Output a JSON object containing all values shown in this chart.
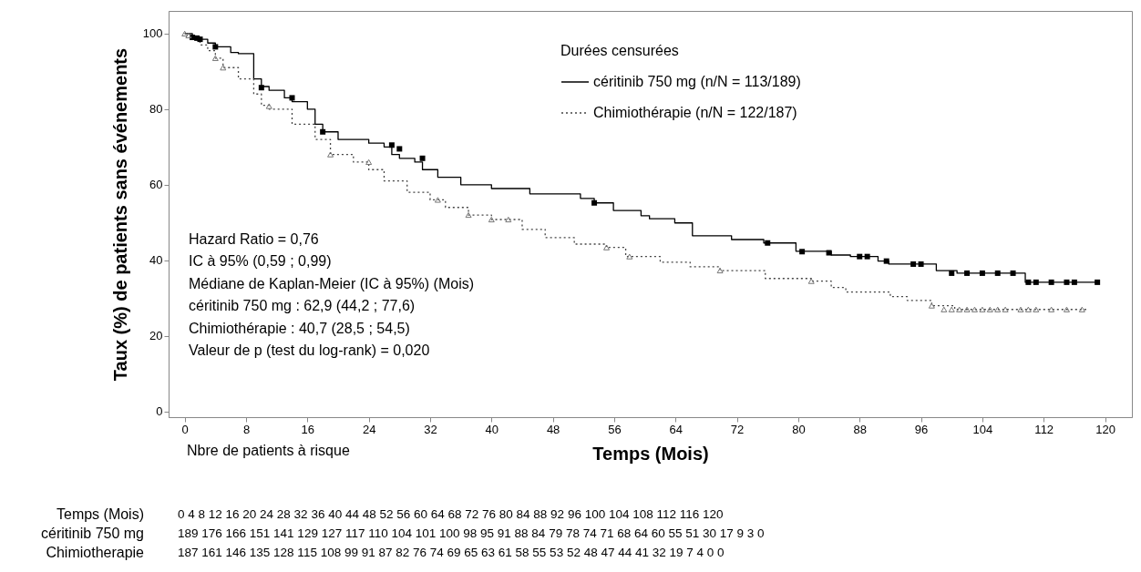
{
  "chart_data": {
    "type": "step",
    "xlabel": "Temps (Mois)",
    "ylabel": "Taux (%) de patients sans événements",
    "legend_title": "Durées censurées",
    "legend": "top right",
    "grid": false,
    "xlim": [
      -2.1,
      123.5
    ],
    "ylim": [
      -1.5,
      106
    ],
    "xticks": [
      0,
      8,
      16,
      24,
      32,
      40,
      48,
      56,
      64,
      72,
      80,
      88,
      96,
      104,
      112,
      120
    ],
    "yticks": [
      0,
      20,
      40,
      60,
      80,
      100
    ],
    "series": [
      {
        "type": "step",
        "name": "céritinib 750 mg (n/N = 113/189)",
        "color": "#000000",
        "line_style": "solid",
        "x": [
          0,
          1,
          2,
          3,
          4,
          6,
          7,
          9,
          10,
          11,
          13,
          14,
          16,
          17,
          18,
          20,
          24,
          26,
          27,
          28,
          30,
          31,
          33,
          36,
          40,
          45,
          51.6,
          53.4,
          55.9,
          59.5,
          60.6,
          63.9,
          66.2,
          71.3,
          75.5,
          79.7,
          84.3,
          86.8,
          90.4,
          91.8,
          98,
          100.7,
          109.6,
          119
        ],
        "values": [
          100,
          99,
          98.5,
          97.5,
          96.5,
          95,
          94.7,
          88,
          86,
          85,
          83,
          82,
          80,
          76,
          74,
          72,
          71,
          70,
          68,
          67,
          66,
          64,
          62,
          60,
          59,
          57.6,
          56.4,
          55.2,
          53.2,
          51.8,
          51,
          49.9,
          46.5,
          45.5,
          44.6,
          42.4,
          41.4,
          41,
          39.8,
          39,
          37.3,
          36.6,
          34.2,
          34.2
        ]
      },
      {
        "type": "step",
        "name": "Chimiothérapie (n/N = 122/187)",
        "color": "#444444",
        "line_style": "dotted",
        "x": [
          0,
          1,
          2,
          3,
          4,
          5,
          7,
          9,
          10,
          11,
          14,
          17,
          19,
          22,
          24,
          26,
          29,
          32,
          34,
          37,
          40,
          44,
          47,
          50.8,
          55,
          57.5,
          62,
          65.9,
          69.8,
          75.7,
          81.7,
          84.3,
          86.2,
          92,
          94.2,
          97.4,
          100.4,
          117.7
        ],
        "values": [
          100,
          98.5,
          97,
          95.5,
          93.5,
          91,
          88,
          84,
          81,
          80,
          76,
          72,
          68,
          66,
          64,
          61,
          58,
          56,
          54,
          52,
          50.8,
          48.2,
          46,
          44.3,
          43.4,
          41,
          39.5,
          38.3,
          37.3,
          35.2,
          34.5,
          32.8,
          31.6,
          30.4,
          29.4,
          28,
          27,
          27
        ]
      },
      {
        "type": "scatter",
        "marker": "square",
        "color": "#000000",
        "x": [
          1,
          1.6,
          2,
          4,
          10,
          14,
          18,
          27,
          28,
          31,
          53.4,
          76,
          80.5,
          84,
          88,
          89,
          91.5,
          95,
          96,
          100,
          102,
          104,
          106,
          108,
          110,
          111,
          113,
          115,
          116,
          119
        ],
        "values": [
          99,
          98.8,
          98.5,
          96.5,
          85.7,
          83,
          74,
          70.5,
          69.5,
          67,
          55.2,
          44.6,
          42.3,
          42,
          41,
          41,
          39.8,
          39,
          39,
          36.6,
          36.6,
          36.6,
          36.6,
          36.6,
          34.2,
          34.2,
          34.2,
          34.2,
          34.2,
          34.2
        ]
      },
      {
        "type": "scatter",
        "marker": "triangle",
        "color": "#777777",
        "x": [
          0,
          0.5,
          4,
          5,
          11,
          19,
          24,
          33,
          37,
          40,
          42.2,
          55,
          58,
          69.8,
          81.7,
          97.4,
          99,
          100,
          101,
          102,
          103,
          104,
          105,
          106,
          107,
          109,
          110,
          111,
          113,
          115,
          117
        ],
        "values": [
          100,
          99.5,
          93.5,
          91,
          80.8,
          68,
          66,
          56,
          52,
          50.8,
          50.8,
          43.4,
          41,
          37.3,
          34.5,
          28,
          27,
          27,
          27,
          27,
          27,
          27,
          27,
          27,
          27,
          27,
          27,
          27,
          27,
          27,
          27
        ]
      }
    ],
    "annotations": [
      "Hazard Ratio = 0,76",
      "IC à 95% (0,59 ; 0,99)",
      "Médiane de Kaplan-Meier (IC à 95%) (Mois)",
      "céritinib 750 mg : 62,9 (44,2 ; 77,6)",
      "Chimiothérapie : 40,7 (28,5 ; 54,5)",
      "Valeur de p (test du log-rank) = 0,020",
      "Nbre de patients à risque",
      "Temps (Mois)\t0 4 8 12 16 20 24 28 32 36 40 44 48 52 56 60 64 68 72 76 80 84 88 92 96 100 104 108 112 116 120",
      "céritinib 750 mg\t189 176 166 151 141 129 127 117 110 104 101 100 98 95 91 88 84 79 78 74 71 68 64 60 55 51 30 17 9 3 0",
      "Chimiotherapie\t187 161 146 135 128 115 108 99 91 87 82 76 74 69 65 63 61 58 55 53 52 48 47 44 41 32 19 7 4 0 0"
    ]
  }
}
